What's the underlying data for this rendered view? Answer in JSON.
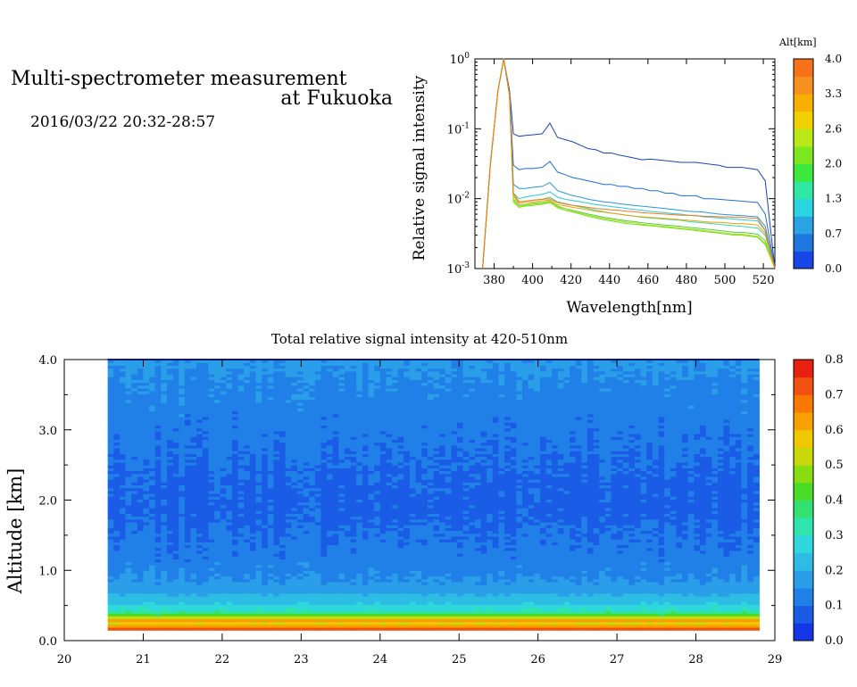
{
  "header": {
    "title_line1": "Multi-spectrometer measurement",
    "title_line2": "at Fukuoka",
    "datetime": "2016/03/22 20:32-28:57"
  },
  "chart_data": [
    {
      "type": "line",
      "xlabel": "Wavelength[nm]",
      "ylabel": "Relative signal intensity",
      "xlim": [
        370,
        526
      ],
      "ylim": [
        0.001,
        1
      ],
      "yscale": "log",
      "x_ticks": [
        "380",
        "400",
        "420",
        "440",
        "460",
        "480",
        "500",
        "520"
      ],
      "y_ticks": [
        "10^-3",
        "10^-2",
        "10^-1",
        "10^0"
      ],
      "colorbar_title": "Alt[km]",
      "colorbar_labels": [
        "0.0",
        "0.7",
        "1.3",
        "2.0",
        "2.6",
        "3.3",
        "4.0"
      ],
      "colorbar_colors": [
        "#1846e8",
        "#1f78e0",
        "#2aa2e6",
        "#2ad4e0",
        "#30e8a4",
        "#3ce83c",
        "#7ce820",
        "#b8e818",
        "#f0d000",
        "#f8b000",
        "#f89020",
        "#f87018"
      ],
      "x": [
        374,
        378,
        382,
        385,
        388,
        390,
        393,
        396,
        400,
        405,
        409,
        413,
        417,
        421,
        425,
        429,
        433,
        437,
        441,
        445,
        449,
        453,
        457,
        461,
        465,
        469,
        473,
        477,
        481,
        485,
        489,
        493,
        497,
        501,
        505,
        509,
        513,
        517,
        521,
        526
      ],
      "series": [
        {
          "color": "#1846b4",
          "values": [
            0.001,
            0.03,
            0.35,
            1.0,
            0.35,
            0.085,
            0.078,
            0.08,
            0.082,
            0.085,
            0.12,
            0.075,
            0.07,
            0.065,
            0.058,
            0.052,
            0.05,
            0.045,
            0.045,
            0.042,
            0.04,
            0.038,
            0.036,
            0.037,
            0.036,
            0.035,
            0.034,
            0.033,
            0.033,
            0.033,
            0.032,
            0.031,
            0.03,
            0.028,
            0.028,
            0.028,
            0.027,
            0.026,
            0.018,
            0.001
          ]
        },
        {
          "color": "#1f6ed2",
          "values": [
            0.001,
            0.03,
            0.35,
            1.0,
            0.3,
            0.03,
            0.026,
            0.027,
            0.027,
            0.028,
            0.034,
            0.024,
            0.022,
            0.02,
            0.019,
            0.018,
            0.017,
            0.016,
            0.016,
            0.015,
            0.015,
            0.014,
            0.014,
            0.013,
            0.013,
            0.012,
            0.012,
            0.011,
            0.011,
            0.011,
            0.01,
            0.01,
            0.0098,
            0.0096,
            0.0094,
            0.0092,
            0.009,
            0.0088,
            0.006,
            0.001
          ]
        },
        {
          "color": "#2a96dc",
          "values": [
            0.001,
            0.03,
            0.35,
            1.0,
            0.3,
            0.016,
            0.014,
            0.014,
            0.0145,
            0.015,
            0.017,
            0.013,
            0.012,
            0.011,
            0.0105,
            0.0098,
            0.0094,
            0.009,
            0.0088,
            0.0085,
            0.0082,
            0.008,
            0.0078,
            0.0076,
            0.0074,
            0.0072,
            0.007,
            0.0068,
            0.0066,
            0.0065,
            0.0064,
            0.0062,
            0.006,
            0.0059,
            0.0058,
            0.0057,
            0.0056,
            0.0055,
            0.004,
            0.001
          ]
        },
        {
          "color": "#2ac8dc",
          "values": [
            0.001,
            0.03,
            0.35,
            1.0,
            0.3,
            0.012,
            0.01,
            0.0105,
            0.011,
            0.0115,
            0.0125,
            0.0105,
            0.0098,
            0.0094,
            0.009,
            0.0086,
            0.0082,
            0.008,
            0.0077,
            0.0075,
            0.0072,
            0.007,
            0.0068,
            0.0066,
            0.0064,
            0.0063,
            0.0061,
            0.006,
            0.0058,
            0.0057,
            0.0055,
            0.0054,
            0.0053,
            0.0052,
            0.0051,
            0.005,
            0.0049,
            0.0048,
            0.0035,
            0.001
          ]
        },
        {
          "color": "#30dca8",
          "values": [
            0.001,
            0.03,
            0.35,
            1.0,
            0.3,
            0.011,
            0.009,
            0.0092,
            0.0095,
            0.0098,
            0.0105,
            0.009,
            0.0085,
            0.008,
            0.0076,
            0.0072,
            0.0068,
            0.0065,
            0.0062,
            0.006,
            0.0058,
            0.0056,
            0.0054,
            0.0053,
            0.0052,
            0.0051,
            0.005,
            0.0049,
            0.0047,
            0.0046,
            0.0045,
            0.0044,
            0.0043,
            0.0042,
            0.0041,
            0.004,
            0.0039,
            0.0038,
            0.003,
            0.001
          ]
        },
        {
          "color": "#4ad23c",
          "values": [
            0.001,
            0.03,
            0.35,
            1.0,
            0.3,
            0.01,
            0.008,
            0.0082,
            0.0086,
            0.0088,
            0.0092,
            0.0078,
            0.0072,
            0.0068,
            0.0064,
            0.006,
            0.0057,
            0.0054,
            0.0052,
            0.005,
            0.0048,
            0.0047,
            0.0045,
            0.0044,
            0.0043,
            0.0042,
            0.0041,
            0.004,
            0.0039,
            0.0038,
            0.0037,
            0.0036,
            0.0035,
            0.0034,
            0.0033,
            0.0033,
            0.0032,
            0.0031,
            0.0025,
            0.001
          ]
        },
        {
          "color": "#6ee01e",
          "values": [
            0.001,
            0.03,
            0.35,
            1.0,
            0.3,
            0.009,
            0.0075,
            0.0078,
            0.008,
            0.0083,
            0.0088,
            0.0074,
            0.0068,
            0.0064,
            0.006,
            0.0056,
            0.0053,
            0.005,
            0.0048,
            0.0046,
            0.0044,
            0.0043,
            0.0042,
            0.0041,
            0.004,
            0.0039,
            0.0038,
            0.0037,
            0.0036,
            0.0035,
            0.0034,
            0.0033,
            0.0032,
            0.0031,
            0.003,
            0.003,
            0.0029,
            0.0028,
            0.0022,
            0.001
          ]
        },
        {
          "color": "#b4dc14",
          "values": [
            0.001,
            0.03,
            0.35,
            1.0,
            0.3,
            0.0095,
            0.0078,
            0.008,
            0.0083,
            0.0086,
            0.009,
            0.0076,
            0.0071,
            0.0066,
            0.0062,
            0.0058,
            0.0055,
            0.0052,
            0.005,
            0.0048,
            0.0046,
            0.0045,
            0.0043,
            0.0042,
            0.0041,
            0.004,
            0.0039,
            0.0038,
            0.0037,
            0.0036,
            0.0035,
            0.0034,
            0.0033,
            0.0032,
            0.0031,
            0.0031,
            0.003,
            0.0029,
            0.0023,
            0.001
          ]
        },
        {
          "color": "#f0a000",
          "values": [
            0.001,
            0.03,
            0.35,
            1.0,
            0.3,
            0.011,
            0.0085,
            0.0088,
            0.009,
            0.0093,
            0.0096,
            0.0082,
            0.0079,
            0.0075,
            0.0072,
            0.0069,
            0.0066,
            0.0064,
            0.0062,
            0.006,
            0.0058,
            0.0056,
            0.0055,
            0.0054,
            0.0053,
            0.0052,
            0.0051,
            0.005,
            0.0049,
            0.0048,
            0.0047,
            0.0046,
            0.0046,
            0.0045,
            0.0044,
            0.0044,
            0.0043,
            0.0042,
            0.0032,
            0.001
          ]
        },
        {
          "color": "#f07818",
          "values": [
            0.001,
            0.03,
            0.35,
            1.0,
            0.3,
            0.012,
            0.009,
            0.0092,
            0.0095,
            0.0098,
            0.01,
            0.0088,
            0.0084,
            0.008,
            0.0078,
            0.0075,
            0.0072,
            0.0071,
            0.0069,
            0.0068,
            0.0066,
            0.0065,
            0.0063,
            0.0062,
            0.0061,
            0.006,
            0.0059,
            0.0058,
            0.0058,
            0.0057,
            0.0056,
            0.0056,
            0.0055,
            0.0055,
            0.0054,
            0.0054,
            0.0053,
            0.0052,
            0.0035,
            0.001
          ]
        }
      ]
    },
    {
      "type": "heatmap",
      "title": "Total relative signal intensity at 420-510nm",
      "xlabel": "",
      "ylabel": "Altitude [km]",
      "xlim": [
        20,
        29
      ],
      "ylim": [
        0,
        4
      ],
      "data_x_range": [
        20.55,
        28.8
      ],
      "data_y_range": [
        0.15,
        4.0
      ],
      "x_ticks": [
        "20",
        "21",
        "22",
        "23",
        "24",
        "25",
        "26",
        "27",
        "28",
        "29"
      ],
      "y_ticks": [
        "0.0",
        "1.0",
        "2.0",
        "3.0",
        "4.0"
      ],
      "colorbar_range": [
        0,
        0.8
      ],
      "colorbar_labels": [
        "0.0",
        "0.1",
        "0.2",
        "0.3",
        "0.4",
        "0.5",
        "0.6",
        "0.7",
        "0.8"
      ],
      "colorbar_colors": [
        "#1436e6",
        "#1a5ce6",
        "#2080e8",
        "#2a9ee8",
        "#2cbce4",
        "#2ed8dc",
        "#30e4b0",
        "#34e070",
        "#48dc28",
        "#88dc10",
        "#c8d80a",
        "#f0c800",
        "#f8a000",
        "#f87800",
        "#f05010",
        "#e82010"
      ],
      "profile_altitude_km": [
        0.15,
        0.2,
        0.25,
        0.3,
        0.35,
        0.4,
        0.45,
        0.5,
        0.6,
        0.7,
        0.85,
        1.0,
        1.3,
        1.6,
        1.9,
        2.2,
        2.5,
        2.8,
        3.1,
        3.4,
        3.7,
        3.95
      ],
      "profile_value": [
        0.76,
        0.66,
        0.55,
        0.62,
        0.45,
        0.36,
        0.3,
        0.26,
        0.22,
        0.19,
        0.155,
        0.135,
        0.115,
        0.1,
        0.085,
        0.09,
        0.1,
        0.11,
        0.12,
        0.13,
        0.145,
        0.16
      ]
    }
  ]
}
